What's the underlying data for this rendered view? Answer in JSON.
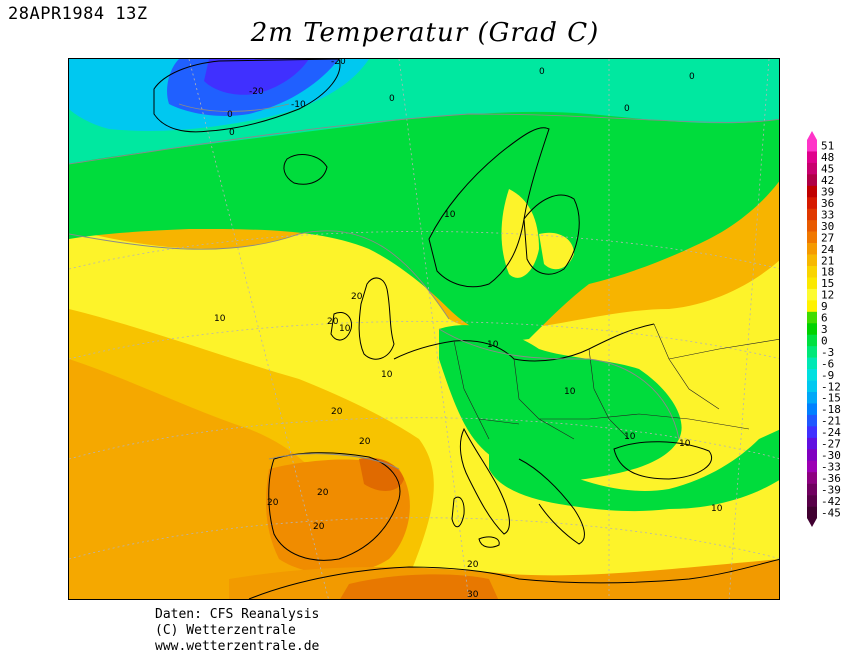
{
  "header": {
    "datestamp": "28APR1984 13Z",
    "title": "2m Temperatur (Grad C)"
  },
  "legend": {
    "levels": [
      "51",
      "48",
      "45",
      "42",
      "39",
      "36",
      "33",
      "30",
      "27",
      "24",
      "21",
      "18",
      "15",
      "12",
      "9",
      "6",
      "3",
      "0",
      "-3",
      "-6",
      "-9",
      "-12",
      "-15",
      "-18",
      "-21",
      "-24",
      "-27",
      "-30",
      "-33",
      "-36",
      "-39",
      "-42",
      "-45"
    ],
    "colors": [
      "#ff34c8",
      "#e0008c",
      "#c8006e",
      "#b00046",
      "#c00000",
      "#d61a00",
      "#e03800",
      "#e85a00",
      "#f07800",
      "#f59a00",
      "#f7b800",
      "#f9d400",
      "#fbe800",
      "#fdfb30",
      "#fff200",
      "#40dc00",
      "#00d200",
      "#00e040",
      "#00e878",
      "#00e8b4",
      "#00e0e0",
      "#00c8f0",
      "#00a8f8",
      "#0080ff",
      "#2058ff",
      "#4030ff",
      "#6010e0",
      "#8000c0",
      "#9c00b4",
      "#8c0080",
      "#700060",
      "#580048",
      "#400030"
    ],
    "unit": "°C"
  },
  "contour_labels": [
    {
      "text": "-20"
    },
    {
      "text": "-20"
    },
    {
      "text": "-10"
    },
    {
      "text": "0"
    },
    {
      "text": "0"
    },
    {
      "text": "0"
    },
    {
      "text": "0"
    },
    {
      "text": "0"
    },
    {
      "text": "0"
    },
    {
      "text": "10"
    },
    {
      "text": "10"
    },
    {
      "text": "10"
    },
    {
      "text": "10"
    },
    {
      "text": "10"
    },
    {
      "text": "10"
    },
    {
      "text": "10"
    },
    {
      "text": "10"
    },
    {
      "text": "10"
    },
    {
      "text": "20"
    },
    {
      "text": "20"
    },
    {
      "text": "20"
    },
    {
      "text": "20"
    },
    {
      "text": "20"
    },
    {
      "text": "20"
    },
    {
      "text": "20"
    },
    {
      "text": "20"
    },
    {
      "text": "30"
    }
  ],
  "credits": {
    "line1": "Daten: CFS Reanalysis",
    "line2": "(C) Wetterzentrale",
    "line3": "www.wetterzentrale.de"
  }
}
